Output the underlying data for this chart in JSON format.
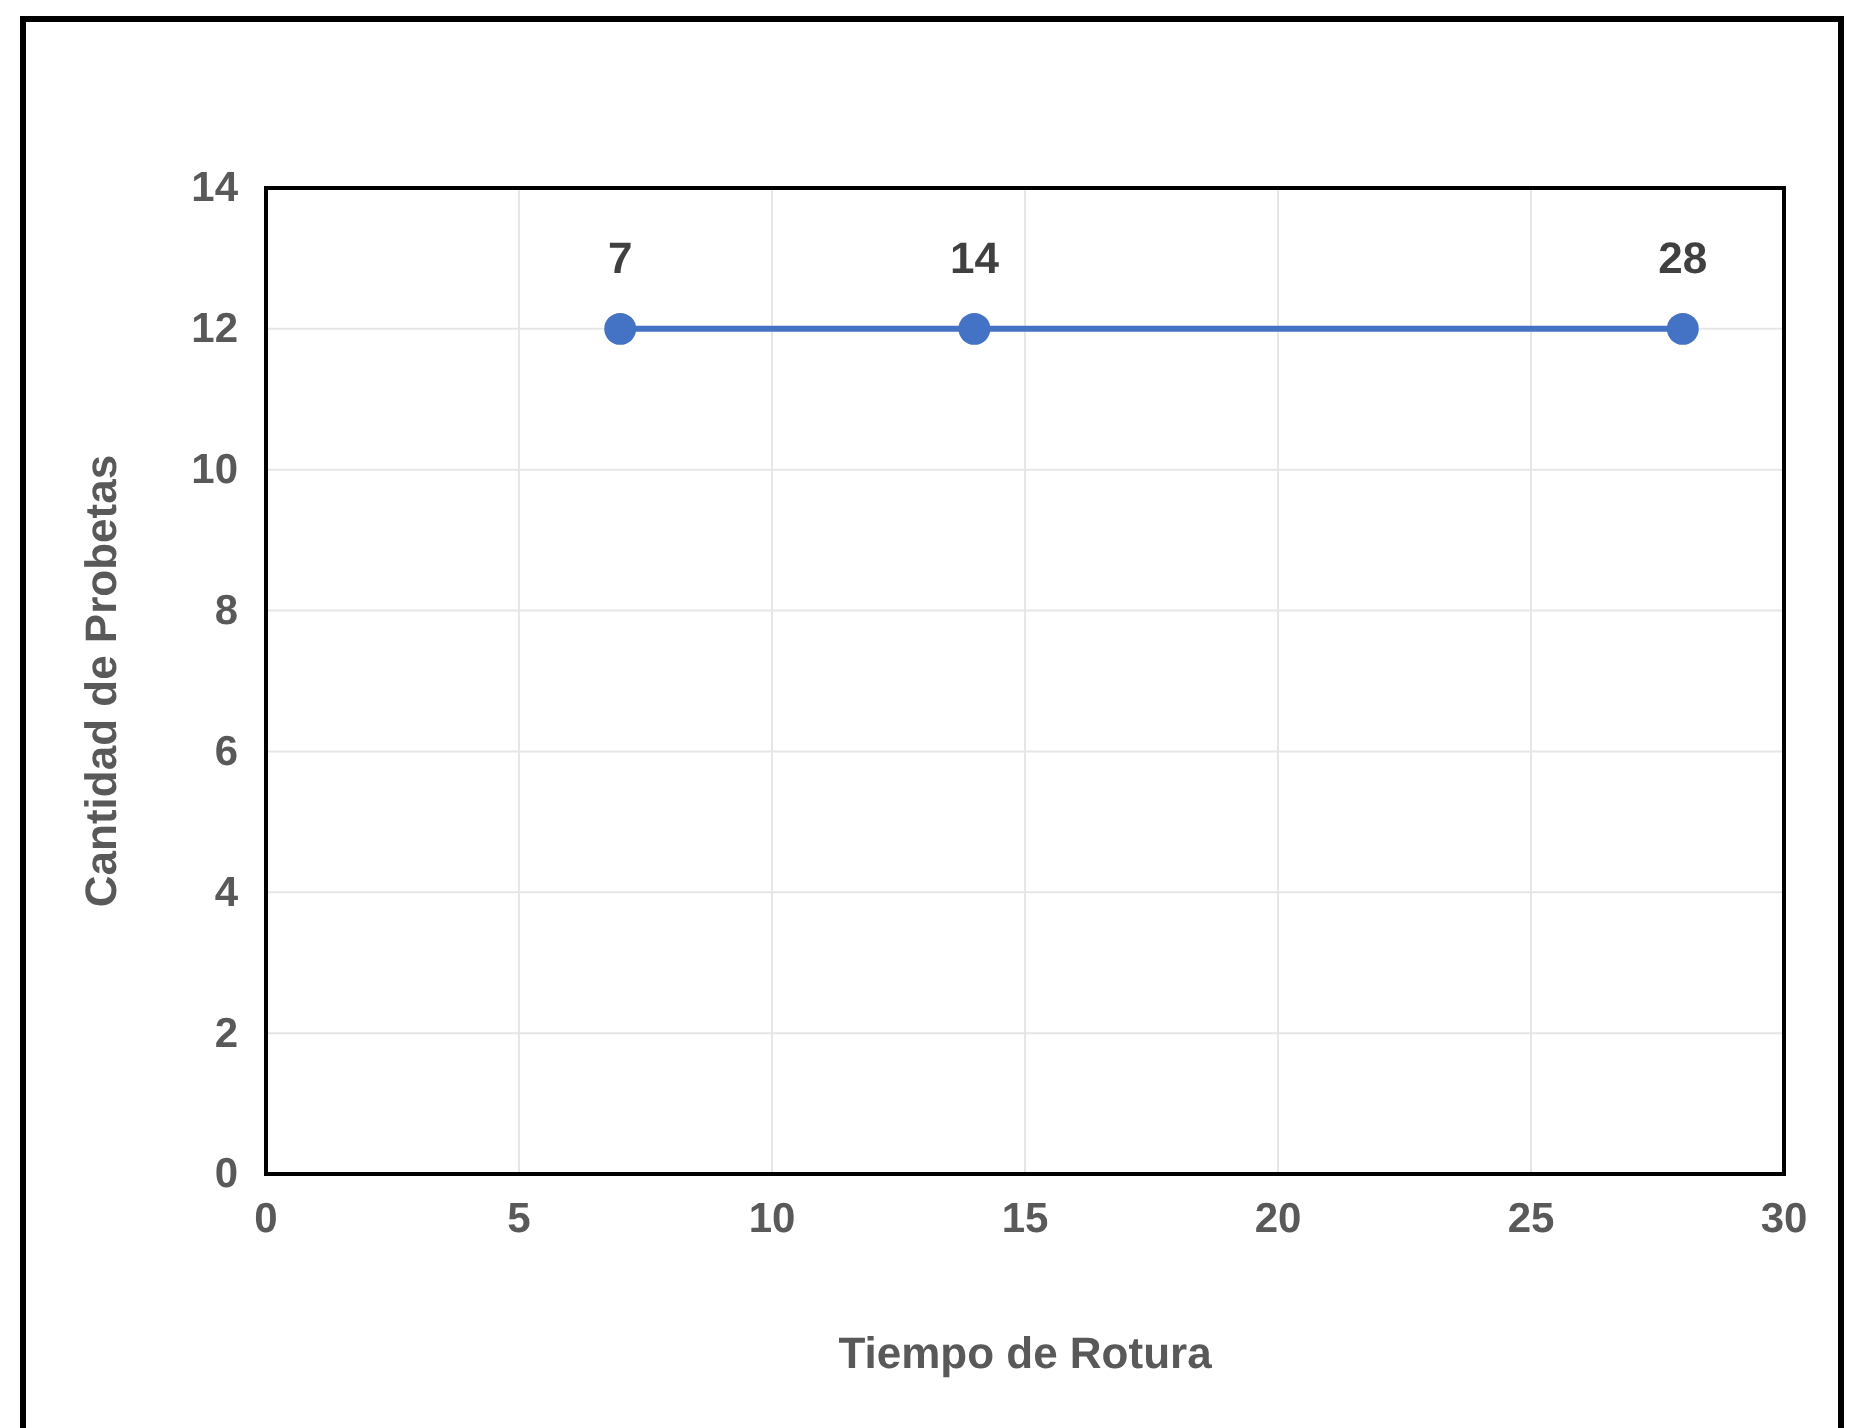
{
  "chart_data": {
    "type": "line",
    "xlabel": "Tiempo de Rotura",
    "ylabel": "Cantidad de Probetas",
    "x": [
      7,
      14,
      28
    ],
    "series": [
      {
        "color": "#4472c4",
        "values": [
          12,
          12,
          12
        ]
      }
    ],
    "annotations": [
      {
        "text": "7",
        "x": 7,
        "y": 12
      },
      {
        "text": "14",
        "x": 14,
        "y": 12
      },
      {
        "text": "28",
        "x": 28,
        "y": 12
      }
    ],
    "xlim": [
      0,
      30
    ],
    "xticks": [
      0,
      5,
      10,
      15,
      20,
      25,
      30
    ],
    "ylim": [
      0,
      14
    ],
    "yticks": [
      0,
      2,
      4,
      6,
      8,
      10,
      12,
      14
    ],
    "grid": true,
    "marker": "circle",
    "line_style": "solid"
  }
}
